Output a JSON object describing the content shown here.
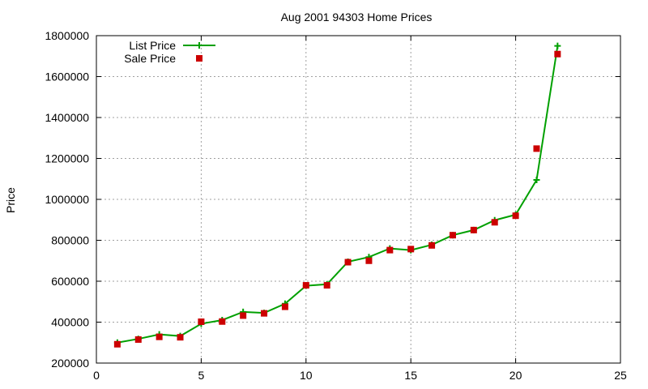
{
  "chart_data": {
    "type": "line",
    "title": "Aug 2001 94303 Home Prices",
    "xlabel": "",
    "ylabel": "Price",
    "xlim": [
      0,
      25
    ],
    "ylim": [
      200000,
      1800000
    ],
    "xticks": [
      0,
      5,
      10,
      15,
      20,
      25
    ],
    "yticks": [
      200000,
      400000,
      600000,
      800000,
      1000000,
      1200000,
      1400000,
      1600000,
      1800000
    ],
    "xtick_labels": [
      "0",
      "5",
      "10",
      "15",
      "20",
      "25"
    ],
    "ytick_labels": [
      "200000",
      "400000",
      "600000",
      "800000",
      "1000000",
      "1200000",
      "1400000",
      "1600000",
      "1800000"
    ],
    "grid": true,
    "legend_position": "top-left",
    "series": [
      {
        "name": "List Price",
        "style": "line-plus",
        "color": "#00a000",
        "x": [
          1,
          2,
          3,
          4,
          5,
          6,
          7,
          8,
          9,
          10,
          11,
          12,
          13,
          14,
          15,
          16,
          17,
          18,
          19,
          20,
          21,
          22
        ],
        "y": [
          300000,
          318000,
          340000,
          332000,
          392000,
          410000,
          450000,
          445000,
          490000,
          578000,
          585000,
          695000,
          718000,
          760000,
          752000,
          778000,
          825000,
          850000,
          898000,
          925000,
          1095000,
          1750000
        ]
      },
      {
        "name": "Sale Price",
        "style": "square",
        "color": "#cc0000",
        "x": [
          1,
          2,
          3,
          4,
          5,
          6,
          7,
          8,
          9,
          10,
          11,
          12,
          13,
          14,
          15,
          16,
          17,
          18,
          19,
          20,
          21,
          22
        ],
        "y": [
          292000,
          315000,
          328000,
          326000,
          402000,
          403000,
          432000,
          443000,
          475000,
          580000,
          580000,
          693000,
          700000,
          752000,
          757000,
          775000,
          825000,
          850000,
          888000,
          920000,
          1248000,
          1710000
        ]
      }
    ]
  }
}
